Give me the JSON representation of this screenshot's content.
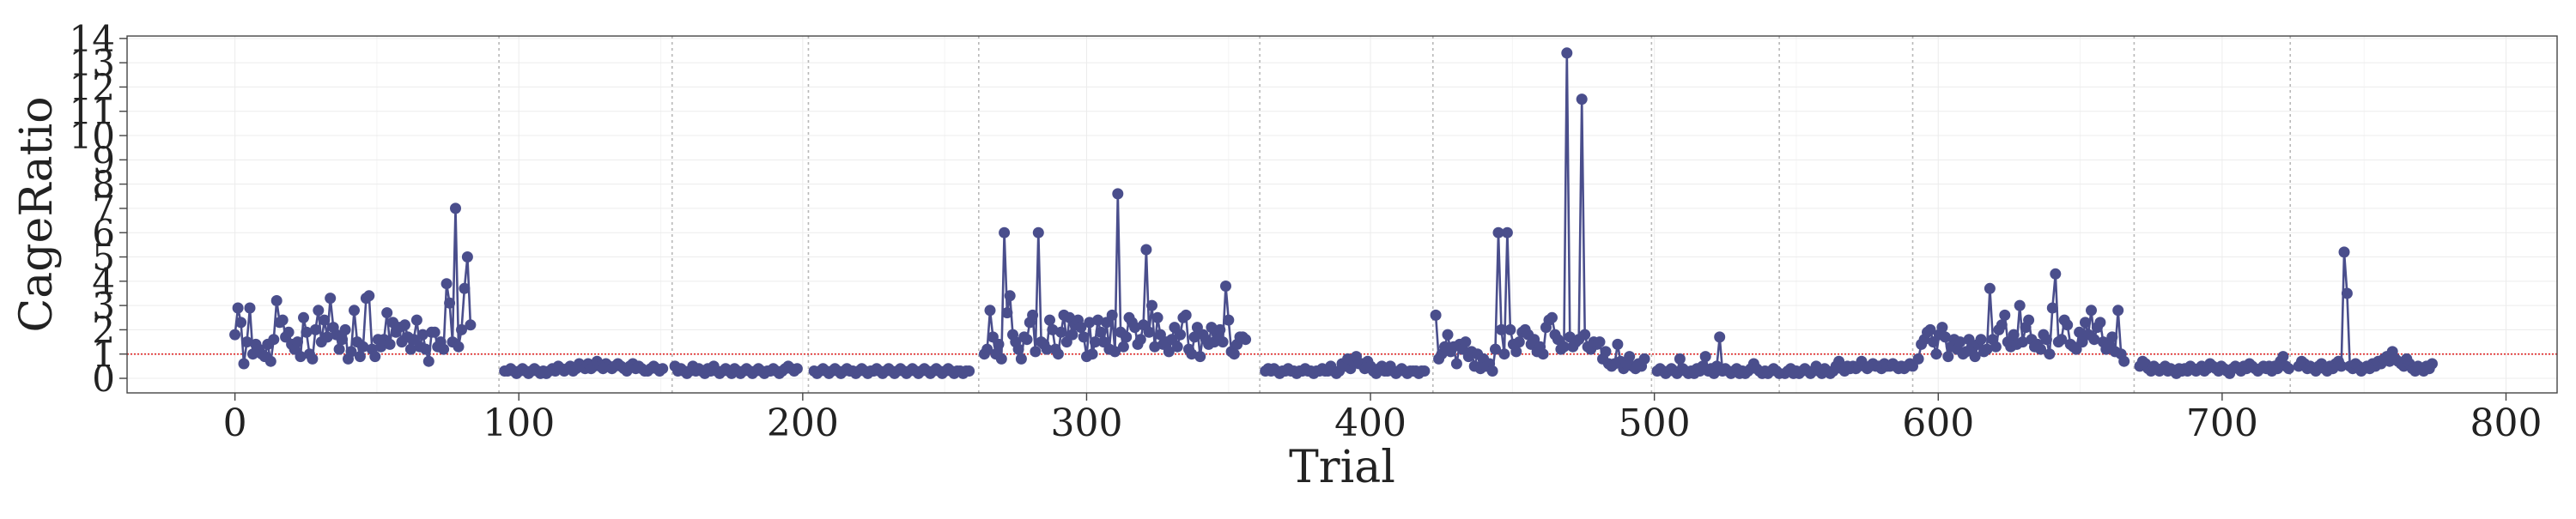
{
  "chart_data": {
    "type": "line",
    "xlabel": "Trial",
    "ylabel": "CageRatio",
    "xlim": [
      -38,
      818
    ],
    "ylim": [
      -0.6,
      14.1
    ],
    "x_ticks": [
      0,
      100,
      200,
      300,
      400,
      500,
      600,
      700,
      800
    ],
    "x_tick_labels": [
      "0",
      "100",
      "200",
      "300",
      "400",
      "500",
      "600",
      "700",
      "800"
    ],
    "y_ticks": [
      0,
      1,
      2,
      3,
      4,
      5,
      6,
      7,
      8,
      9,
      10,
      11,
      12,
      13,
      14
    ],
    "y_tick_labels": [
      "0",
      "1",
      "2",
      "3",
      "4",
      "5",
      "6",
      "7",
      "8",
      "9",
      "10",
      "11",
      "12",
      "13",
      "14"
    ],
    "grid": true,
    "reference_line": {
      "y": 1.0,
      "style": "dotted",
      "color": "#e03030"
    },
    "block_boundaries_x": [
      93,
      154,
      202,
      262,
      361,
      422,
      499,
      544,
      591,
      669,
      724
    ],
    "series": [
      {
        "color": "#4a4e8c",
        "marker": "circle",
        "segments": [
          {
            "x_start": 0,
            "values": [
              1.8,
              2.9,
              2.3,
              0.6,
              1.5,
              2.9,
              1.0,
              1.4,
              1.2,
              1.0,
              0.9,
              1.4,
              0.7,
              1.6,
              3.2,
              2.3,
              2.4,
              1.7,
              1.9,
              1.4,
              1.2,
              1.5,
              0.9,
              2.5,
              1.9,
              1.0,
              0.8,
              2.0,
              2.8,
              1.5,
              2.4,
              1.7,
              3.3,
              2.1,
              1.8,
              1.2,
              1.6,
              2.0,
              0.8,
              1.1,
              2.8,
              1.5,
              0.9,
              1.3,
              3.3,
              3.4,
              1.2,
              0.9,
              1.6,
              1.3,
              1.6,
              2.7,
              1.4,
              2.3,
              1.9,
              2.1,
              1.5,
              2.2,
              1.7,
              1.2,
              1.6,
              2.4,
              1.3,
              1.8,
              1.2,
              0.7,
              1.9,
              1.9,
              1.3,
              1.5,
              1.2,
              3.9,
              3.1,
              1.5,
              7.0,
              1.3,
              2.0,
              3.7,
              5.0,
              2.2
            ],
            "x_step": 1.05
          },
          {
            "x_start": 95,
            "values": [
              0.3,
              0.3,
              0.4,
              0.3,
              0.2,
              0.3,
              0.4,
              0.3,
              0.2,
              0.3,
              0.4,
              0.3,
              0.2,
              0.3,
              0.2,
              0.3,
              0.4,
              0.3,
              0.5,
              0.4,
              0.3,
              0.4,
              0.5,
              0.3,
              0.4,
              0.6,
              0.5,
              0.4,
              0.6,
              0.4,
              0.5,
              0.7,
              0.5,
              0.4,
              0.6,
              0.5,
              0.4,
              0.5,
              0.6,
              0.5,
              0.4,
              0.3,
              0.5,
              0.6,
              0.4,
              0.5,
              0.4,
              0.3,
              0.3,
              0.4,
              0.5,
              0.4,
              0.3,
              0.4
            ],
            "x_step": 1.05
          },
          {
            "x_start": 155,
            "values": [
              0.5,
              0.3,
              0.4,
              0.3,
              0.2,
              0.3,
              0.5,
              0.3,
              0.4,
              0.3,
              0.2,
              0.4,
              0.3,
              0.5,
              0.3,
              0.2,
              0.3,
              0.4,
              0.3,
              0.2,
              0.4,
              0.3,
              0.2,
              0.3,
              0.4,
              0.3,
              0.2,
              0.3,
              0.4,
              0.3,
              0.2,
              0.3,
              0.3,
              0.4,
              0.3,
              0.2,
              0.3,
              0.4,
              0.5,
              0.4,
              0.3,
              0.4
            ],
            "x_step": 1.05
          },
          {
            "x_start": 204,
            "values": [
              0.3,
              0.2,
              0.3,
              0.4,
              0.3,
              0.2,
              0.3,
              0.4,
              0.3,
              0.2,
              0.3,
              0.4,
              0.3,
              0.3,
              0.2,
              0.3,
              0.4,
              0.3,
              0.2,
              0.3,
              0.3,
              0.4,
              0.3,
              0.2,
              0.3,
              0.4,
              0.3,
              0.2,
              0.3,
              0.4,
              0.3,
              0.2,
              0.3,
              0.4,
              0.3,
              0.2,
              0.3,
              0.4,
              0.3,
              0.2,
              0.3,
              0.4,
              0.3,
              0.2,
              0.3,
              0.4,
              0.3,
              0.2,
              0.3,
              0.3,
              0.2,
              0.3,
              0.3
            ],
            "x_step": 1.05
          },
          {
            "x_start": 264,
            "values": [
              1.0,
              1.2,
              2.8,
              1.7,
              1.0,
              1.4,
              0.8,
              6.0,
              2.7,
              3.4,
              1.8,
              1.5,
              1.2,
              0.8,
              1.7,
              1.6,
              2.3,
              2.6,
              1.1,
              6.0,
              1.5,
              1.4,
              1.2,
              2.4,
              2.0,
              1.2,
              1.0,
              1.9,
              2.6,
              1.5,
              2.5,
              1.8,
              2.2,
              2.4,
              2.1,
              1.7,
              0.9,
              2.3,
              1.0,
              1.5,
              2.4,
              1.9,
              1.5,
              2.3,
              1.2,
              2.6,
              1.1,
              7.6,
              1.9,
              1.3,
              1.7,
              2.5,
              2.3,
              2.1,
              1.4,
              1.6,
              2.2,
              5.3,
              1.9,
              3.0,
              1.3,
              2.5,
              1.8,
              1.4,
              1.5,
              1.1,
              1.6,
              2.1,
              1.3,
              1.8,
              2.5,
              2.6,
              1.2,
              1.0,
              1.7,
              2.1,
              0.9,
              1.8,
              1.6,
              1.4,
              2.1,
              1.5,
              1.8,
              2.0,
              1.5,
              3.8,
              2.4,
              1.1,
              1.0,
              1.4,
              1.7,
              1.7,
              1.6
            ],
            "x_step": 1.0
          },
          {
            "x_start": 363,
            "values": [
              0.3,
              0.4,
              0.3,
              0.4,
              0.3,
              0.2,
              0.3,
              0.3,
              0.4,
              0.3,
              0.3,
              0.2,
              0.3,
              0.3,
              0.4,
              0.3,
              0.3,
              0.2,
              0.3,
              0.3,
              0.4,
              0.3,
              0.3,
              0.5,
              0.3,
              0.2,
              0.3,
              0.6,
              0.5,
              0.8,
              0.4,
              0.7,
              0.9,
              0.6,
              0.6,
              0.4,
              0.7,
              0.5,
              0.3,
              0.2,
              0.4,
              0.5,
              0.3,
              0.3,
              0.5,
              0.3,
              0.2,
              0.3,
              0.4,
              0.3,
              0.2,
              0.3,
              0.3,
              0.3,
              0.2,
              0.3,
              0.3
            ],
            "x_step": 1.0
          },
          {
            "x_start": 423,
            "values": [
              2.6,
              0.8,
              1.0,
              1.3,
              1.8,
              1.1,
              1.3,
              0.6,
              1.4,
              1.2,
              1.5,
              0.9,
              1.1,
              0.5,
              1.0,
              0.4,
              0.8,
              0.5,
              0.6,
              0.3,
              1.2,
              6.0,
              2.0,
              1.0,
              6.0,
              2.0,
              1.4,
              1.1,
              1.5,
              1.9,
              2.0,
              1.8,
              1.4,
              1.6,
              1.1,
              1.3,
              1.0,
              2.1,
              2.4,
              2.5,
              1.8,
              1.6,
              1.2,
              1.3,
              13.4,
              1.7,
              1.3,
              1.5,
              1.6,
              11.5,
              1.8,
              1.3,
              1.2,
              1.5,
              1.4,
              1.5,
              0.8,
              1.1,
              0.6,
              0.5,
              0.6,
              1.4,
              0.7,
              0.4,
              0.6,
              0.9,
              0.5,
              0.4,
              0.6,
              0.5,
              0.8
            ],
            "x_step": 1.05
          },
          {
            "x_start": 501,
            "values": [
              0.3,
              0.4,
              0.3,
              0.2,
              0.3,
              0.4,
              0.3,
              0.2,
              0.8,
              0.4,
              0.3,
              0.2,
              0.3,
              0.2,
              0.4,
              0.3,
              0.5,
              0.9,
              0.3,
              0.4,
              0.2,
              0.5,
              1.7,
              0.3,
              0.4,
              0.3,
              0.2,
              0.3,
              0.4,
              0.2,
              0.3,
              0.2,
              0.3,
              0.4,
              0.6,
              0.4,
              0.3,
              0.2,
              0.3,
              0.2,
              0.3,
              0.4,
              0.3,
              0.2
            ],
            "x_step": 1.0
          },
          {
            "x_start": 546,
            "values": [
              0.2,
              0.3,
              0.4,
              0.2,
              0.3,
              0.2,
              0.3,
              0.4,
              0.3,
              0.2,
              0.3,
              0.5,
              0.3,
              0.2,
              0.4,
              0.3,
              0.2,
              0.3,
              0.5,
              0.7,
              0.4,
              0.3,
              0.5,
              0.4,
              0.5,
              0.4,
              0.5,
              0.7,
              0.5,
              0.4,
              0.5,
              0.6,
              0.5,
              0.5,
              0.4,
              0.6,
              0.5,
              0.5,
              0.6,
              0.5,
              0.4,
              0.5,
              0.4,
              0.5,
              0.6,
              0.5
            ],
            "x_step": 1.0
          },
          {
            "x_start": 593,
            "values": [
              0.8,
              1.4,
              1.6,
              1.9,
              2.0,
              1.5,
              1.0,
              1.8,
              2.1,
              1.7,
              0.9,
              1.3,
              1.6,
              1.2,
              1.5,
              1.0,
              1.1,
              1.6,
              1.3,
              0.9,
              1.4,
              1.6,
              1.1,
              1.2,
              3.7,
              1.6,
              1.3,
              2.0,
              2.2,
              2.6,
              1.5,
              1.3,
              1.8,
              1.4,
              3.0,
              1.5,
              2.1,
              2.4,
              1.6,
              1.3,
              1.4,
              1.2,
              1.8,
              1.6,
              1.0,
              2.9,
              4.3,
              1.5,
              1.6,
              2.4,
              2.2,
              1.4,
              1.3,
              1.2,
              1.9,
              1.5,
              2.3,
              1.8,
              2.8,
              1.6,
              2.1,
              2.3,
              1.5,
              1.2,
              1.4,
              1.7,
              1.1,
              2.8,
              1.0,
              0.7
            ],
            "x_step": 1.05
          },
          {
            "x_start": 671,
            "values": [
              0.5,
              0.7,
              0.6,
              0.4,
              0.3,
              0.5,
              0.4,
              0.3,
              0.4,
              0.5,
              0.3,
              0.4,
              0.3,
              0.2,
              0.4,
              0.3,
              0.4,
              0.3,
              0.5,
              0.4,
              0.3,
              0.4,
              0.5,
              0.3,
              0.4,
              0.6,
              0.5,
              0.4,
              0.3,
              0.5,
              0.4,
              0.3,
              0.2,
              0.4,
              0.5,
              0.4,
              0.3,
              0.5,
              0.4,
              0.6,
              0.5,
              0.4,
              0.3,
              0.4,
              0.5,
              0.4,
              0.5,
              0.3,
              0.5,
              0.4,
              0.7,
              0.9,
              0.5,
              0.4
            ],
            "x_step": 0.99
          },
          {
            "x_start": 727,
            "values": [
              0.5,
              0.7,
              0.6,
              0.4,
              0.5,
              0.4,
              0.3,
              0.5,
              0.6,
              0.4,
              0.3,
              0.5,
              0.4,
              0.6,
              0.7,
              0.5,
              5.2,
              3.5,
              0.5,
              0.4,
              0.6,
              0.5,
              0.3,
              0.4,
              0.5,
              0.4,
              0.6,
              0.5,
              0.7,
              0.6,
              0.8,
              0.9,
              0.7,
              1.1,
              0.8,
              0.7,
              0.6,
              0.5,
              0.8,
              0.6,
              0.4,
              0.3,
              0.5,
              0.4,
              0.3,
              0.5,
              0.4,
              0.6
            ],
            "x_step": 1.0
          }
        ]
      }
    ]
  }
}
